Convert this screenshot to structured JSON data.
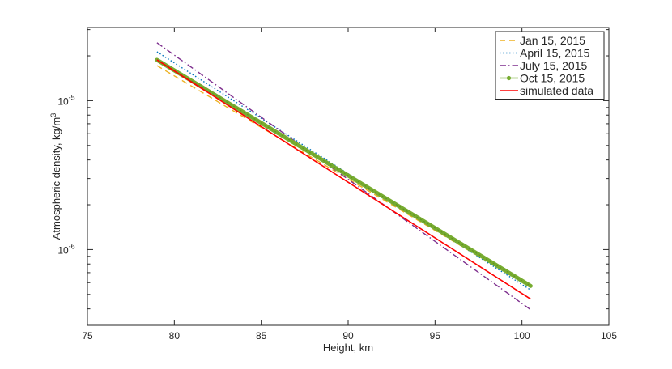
{
  "chart_data": {
    "type": "line",
    "xlabel": "Height, km",
    "ylabel_main": "Atmospheric density, kg/m",
    "ylabel_sup": "3",
    "xlim": [
      75,
      105
    ],
    "ylim": [
      3.1e-07,
      3.1e-05
    ],
    "yscale": "log",
    "xticks": [
      75,
      80,
      85,
      90,
      95,
      100,
      105
    ],
    "yticks": [
      {
        "value": 1e-05,
        "base": "10",
        "exp": "-5"
      },
      {
        "value": 1e-06,
        "base": "10",
        "exp": "-6"
      }
    ],
    "grid": false,
    "legend_position": "top-right",
    "series": [
      {
        "name": "Jan 15, 2015",
        "color": "#EDB120",
        "style": "dashed",
        "x": [
          79,
          100.5
        ],
        "y": [
          1.72e-05,
          5.6e-07
        ]
      },
      {
        "name": "April 15, 2015",
        "color": "#0072BD",
        "style": "dotted",
        "x": [
          79,
          100.5
        ],
        "y": [
          2.13e-05,
          5.35e-07
        ]
      },
      {
        "name": "July 15, 2015",
        "color": "#7E2F8E",
        "style": "dashdot",
        "x": [
          79,
          100.5
        ],
        "y": [
          2.45e-05,
          3.95e-07
        ]
      },
      {
        "name": "Oct 15, 2015",
        "color": "#77AC30",
        "style": "solid-markers",
        "x": [
          79,
          100.5
        ],
        "y": [
          1.88e-05,
          5.7e-07
        ]
      },
      {
        "name": "simulated data",
        "color": "#FF0000",
        "style": "solid",
        "x": [
          79,
          100.5
        ],
        "y": [
          1.88e-05,
          4.65e-07
        ]
      }
    ]
  }
}
